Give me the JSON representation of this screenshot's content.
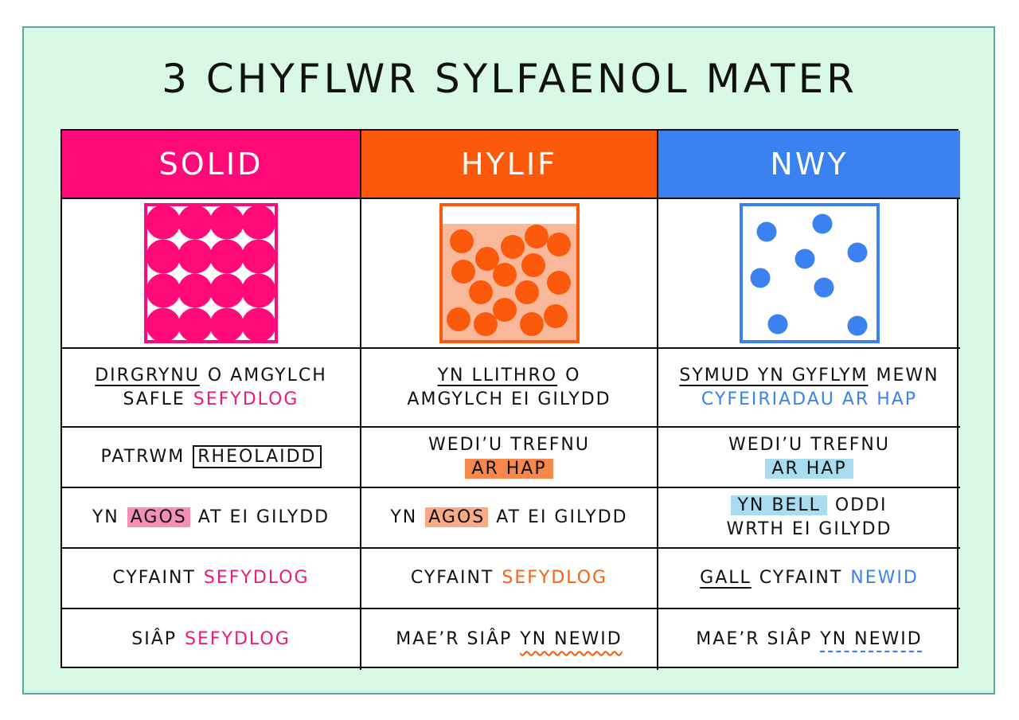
{
  "title": "3 CHYFLWR SYLFAENOL MATER",
  "columns": [
    "SOLID",
    "HYLIF",
    "NWY"
  ],
  "rows": [
    [
      [
        "DIRGRYNU",
        "O AMGYLCH",
        "SAFLE",
        "SEFYDLOG"
      ],
      [
        "YN LLITHRO",
        "O",
        "AMGYLCH EI GILYDD"
      ],
      [
        "SYMUD YN GYFLYM",
        "MEWN",
        "CYFEIRIADAU AR HAP"
      ]
    ],
    [
      [
        "PATRWM",
        "RHEOLAIDD"
      ],
      [
        "WEDI’U TREFNU",
        "AR HAP"
      ],
      [
        "WEDI’U TREFNU",
        "AR HAP"
      ]
    ],
    [
      [
        "YN",
        "AGOS",
        "AT EI GILYDD"
      ],
      [
        "YN",
        "AGOS",
        "AT EI GILYDD"
      ],
      [
        "YN BELL",
        "ODDI",
        "WRTH EI GILYDD"
      ]
    ],
    [
      [
        "CYFAINT",
        "SEFYDLOG"
      ],
      [
        "CYFAINT",
        "SEFYDLOG"
      ],
      [
        "GALL",
        "CYFAINT",
        "NEWID"
      ]
    ],
    [
      [
        "SIÂP",
        "SEFYDLOG"
      ],
      [
        "MAE’R SIÂP",
        "YN NEWID"
      ],
      [
        "MAE’R SIÂP",
        "YN NEWID"
      ]
    ]
  ]
}
